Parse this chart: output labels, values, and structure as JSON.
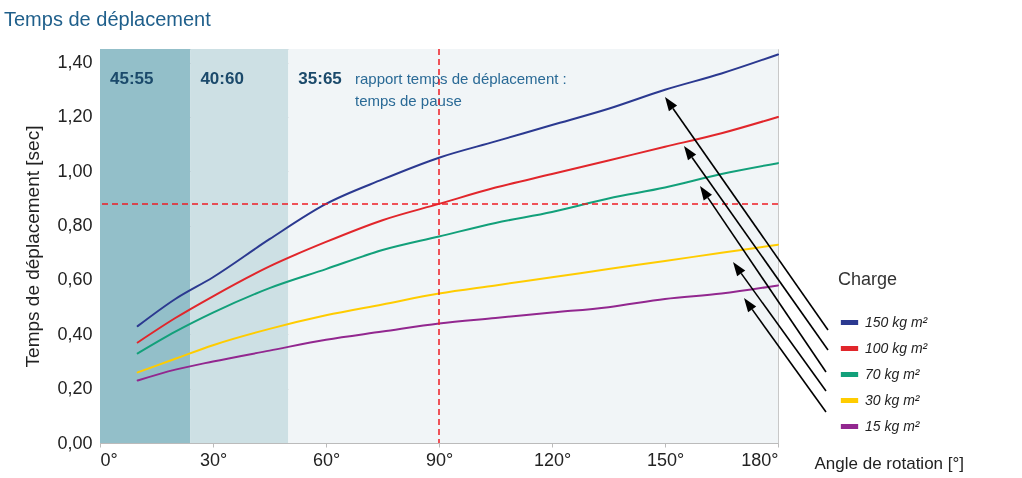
{
  "chart_data": {
    "type": "line",
    "title": "Temps de déplacement",
    "xlabel": "Angle de rotation [°]",
    "ylabel": "Temps de déplacement [sec]",
    "legend_title": "Charge",
    "x": [
      10,
      20,
      30,
      45,
      60,
      75,
      90,
      105,
      120,
      135,
      150,
      165,
      180
    ],
    "series": [
      {
        "name": "150 kg m²",
        "color": "#2b3990",
        "values": [
          0.43,
          0.53,
          0.61,
          0.75,
          0.88,
          0.97,
          1.05,
          1.11,
          1.17,
          1.23,
          1.3,
          1.36,
          1.43
        ]
      },
      {
        "name": "100 kg m²",
        "color": "#e1262b",
        "values": [
          0.37,
          0.46,
          0.54,
          0.65,
          0.74,
          0.82,
          0.88,
          0.94,
          0.99,
          1.04,
          1.09,
          1.14,
          1.2
        ]
      },
      {
        "name": "70 kg m²",
        "color": "#12a07a",
        "values": [
          0.33,
          0.41,
          0.48,
          0.57,
          0.64,
          0.71,
          0.76,
          0.81,
          0.85,
          0.9,
          0.94,
          0.99,
          1.03
        ]
      },
      {
        "name": "30 kg m²",
        "color": "#ffcc00",
        "values": [
          0.26,
          0.31,
          0.36,
          0.42,
          0.47,
          0.51,
          0.55,
          0.58,
          0.61,
          0.64,
          0.67,
          0.7,
          0.73
        ]
      },
      {
        "name": "15 kg m²",
        "color": "#92278f",
        "values": [
          0.23,
          0.27,
          0.3,
          0.34,
          0.38,
          0.41,
          0.44,
          0.46,
          0.48,
          0.5,
          0.53,
          0.55,
          0.58
        ]
      }
    ],
    "xlim": [
      0,
      180
    ],
    "ylim": [
      0,
      1.45
    ],
    "xticks": [
      {
        "value": 0,
        "label": "0°"
      },
      {
        "value": 30,
        "label": "30°"
      },
      {
        "value": 60,
        "label": "60°"
      },
      {
        "value": 90,
        "label": "90°"
      },
      {
        "value": 120,
        "label": "120°"
      },
      {
        "value": 150,
        "label": "150°"
      },
      {
        "value": 180,
        "label": "180°"
      }
    ],
    "yticks": [
      {
        "value": 0,
        "label": "0,00"
      },
      {
        "value": 0.2,
        "label": "0,20"
      },
      {
        "value": 0.4,
        "label": "0,40"
      },
      {
        "value": 0.6,
        "label": "0,60"
      },
      {
        "value": 0.8,
        "label": "0,80"
      },
      {
        "value": 1.0,
        "label": "1,00"
      },
      {
        "value": 1.2,
        "label": "1,20"
      },
      {
        "value": 1.4,
        "label": "1,40"
      }
    ],
    "bands": [
      {
        "axis": "x",
        "from": 0,
        "to": 24,
        "label": "45:55",
        "color": "#93bfc9"
      },
      {
        "axis": "x",
        "from": 24,
        "to": 50,
        "label": "40:60",
        "color": "#cde0e4"
      },
      {
        "axis": "x",
        "from": 50,
        "to": 180,
        "label": "35:65",
        "color": "#f1f5f7"
      }
    ],
    "ref_lines": [
      {
        "axis": "y",
        "value": 0.88,
        "color": "#ee1c24",
        "line_style": "dashed"
      },
      {
        "axis": "x",
        "value": 90,
        "color": "#ee1c24",
        "line_style": "dashed"
      }
    ],
    "annotations": [
      "rapport temps de déplacement :\ntemps de pause"
    ],
    "grid": "y",
    "legend": "right",
    "line_style": "solid"
  }
}
